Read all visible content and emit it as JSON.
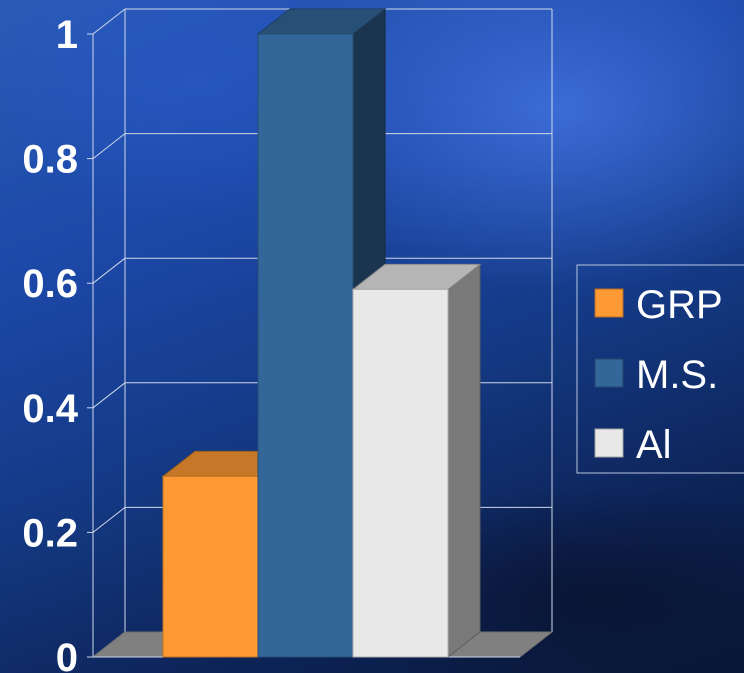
{
  "chart_data": {
    "type": "bar",
    "title": "",
    "xlabel": "",
    "ylabel": "",
    "ylim": [
      0,
      1
    ],
    "yticks": [
      0,
      0.2,
      0.4,
      0.6,
      0.8,
      1
    ],
    "ytick_labels": [
      "0",
      "0.2",
      "0.4",
      "0.6",
      "0.8",
      "1"
    ],
    "grid": true,
    "style": "3d",
    "legend_position": "right",
    "categories": [
      ""
    ],
    "series": [
      {
        "name": "GRP",
        "values": [
          0.29
        ],
        "color": "#ff9933"
      },
      {
        "name": "M.S.",
        "values": [
          1.0
        ],
        "color": "#336699"
      },
      {
        "name": "Al",
        "values": [
          0.59
        ],
        "color": "#e8e8e8"
      }
    ]
  }
}
